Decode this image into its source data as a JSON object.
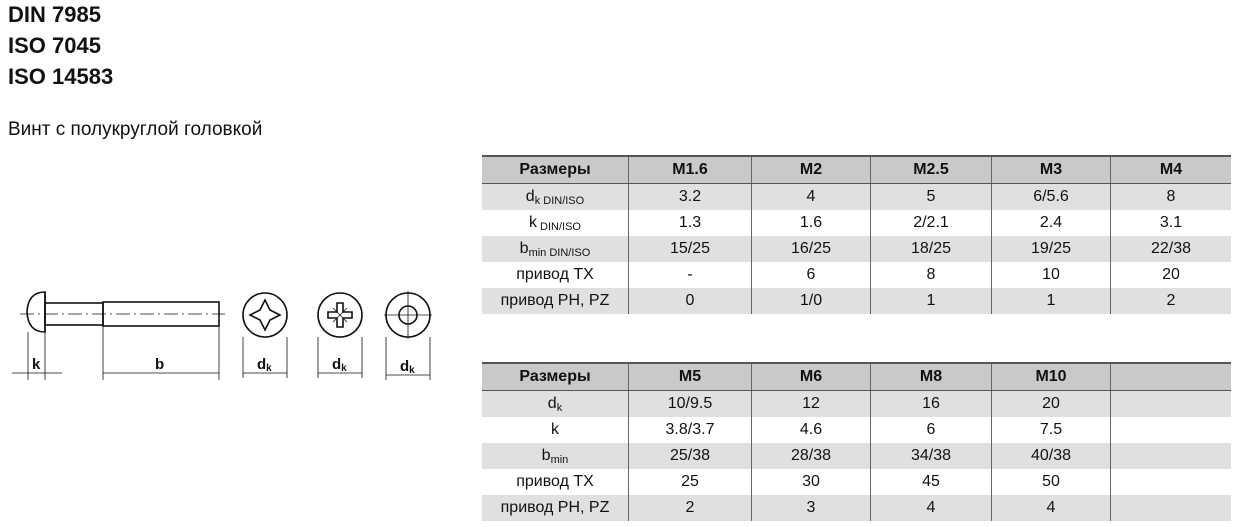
{
  "standards": [
    "DIN 7985",
    "ISO 7045",
    "ISO 14583"
  ],
  "subtitle": "Винт с полукруглой головкой",
  "drawing": {
    "labels": {
      "k": "k",
      "b": "b",
      "dk_main": "d",
      "dk_sub": "k"
    },
    "head_views": [
      "phillips-ph",
      "pozidriv-pz",
      "torx-tx"
    ]
  },
  "table1": {
    "header": [
      "Размеры",
      "M1.6",
      "M2",
      "M2.5",
      "M3",
      "M4"
    ],
    "rows": [
      {
        "label": "d",
        "sub": "k DIN/ISO",
        "values": [
          "3.2",
          "4",
          "5",
          "6/5.6",
          "8"
        ]
      },
      {
        "label": "k",
        "sub": " DIN/ISO",
        "values": [
          "1.3",
          "1.6",
          "2/2.1",
          "2.4",
          "3.1"
        ]
      },
      {
        "label": "b",
        "sub": "min DIN/ISO",
        "values": [
          "15/25",
          "16/25",
          "18/25",
          "19/25",
          "22/38"
        ]
      },
      {
        "label": "привод TX",
        "sub": "",
        "values": [
          "-",
          "6",
          "8",
          "10",
          "20"
        ]
      },
      {
        "label": "привод PH, PZ",
        "sub": "",
        "values": [
          "0",
          "1/0",
          "1",
          "1",
          "2"
        ]
      }
    ]
  },
  "table2": {
    "header": [
      "Размеры",
      "M5",
      "M6",
      "M8",
      "M10",
      ""
    ],
    "rows": [
      {
        "label": "d",
        "sub": "k",
        "values": [
          "10/9.5",
          "12",
          "16",
          "20",
          ""
        ]
      },
      {
        "label": "k",
        "sub": "",
        "values": [
          "3.8/3.7",
          "4.6",
          "6",
          "7.5",
          ""
        ]
      },
      {
        "label": "b",
        "sub": "min",
        "values": [
          "25/38",
          "28/38",
          "34/38",
          "40/38",
          ""
        ]
      },
      {
        "label": "привод TX",
        "sub": "",
        "values": [
          "25",
          "30",
          "45",
          "50",
          ""
        ]
      },
      {
        "label": "привод PH, PZ",
        "sub": "",
        "values": [
          "2",
          "3",
          "4",
          "4",
          ""
        ]
      }
    ]
  }
}
